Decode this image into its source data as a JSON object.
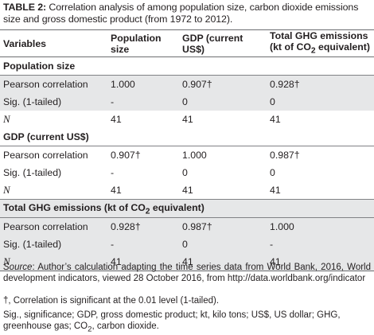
{
  "caption": {
    "label": "TABLE 2:",
    "text": " Correlation analysis of among population size, carbon dioxide emissions size and gross domestic product (from 1972 to 2012)."
  },
  "headers": {
    "variables": "Variables",
    "population": "Population size",
    "gdp": "GDP (current US$)",
    "ghg_pre": "Total GHG emissions (kt of CO",
    "ghg_sub": "2",
    "ghg_post": " equivalent)"
  },
  "sections": [
    {
      "title": "Population size",
      "rows": [
        {
          "label": "Pearson correlation",
          "pop": "1.000",
          "gdp": "0.907†",
          "ghg": "0.928†"
        },
        {
          "label": "Sig. (1-tailed)",
          "pop": "-",
          "gdp": "0",
          "ghg": "0"
        },
        {
          "label": "N",
          "pop": "41",
          "gdp": "41",
          "ghg": "41"
        }
      ]
    },
    {
      "title": "GDP (current US$)",
      "rows": [
        {
          "label": "Pearson correlation",
          "pop": "0.907†",
          "gdp": "1.000",
          "ghg": "0.987†"
        },
        {
          "label": "Sig. (1-tailed)",
          "pop": "-",
          "gdp": "0",
          "ghg": "0"
        },
        {
          "label": "N",
          "pop": "41",
          "gdp": "41",
          "ghg": "41"
        }
      ]
    },
    {
      "title_pre": "Total GHG emissions (kt of CO",
      "title_sub": "2",
      "title_post": " equivalent)",
      "rows": [
        {
          "label": "Pearson correlation",
          "pop": "0.928†",
          "gdp": "0.987†",
          "ghg": "1.000"
        },
        {
          "label": "Sig. (1-tailed)",
          "pop": "-",
          "gdp": "0",
          "ghg": "-"
        },
        {
          "label": "N",
          "pop": "41",
          "gdp": "41",
          "ghg": "41"
        }
      ]
    }
  ],
  "notes": {
    "source_label": "Source",
    "source_text": ": Author’s calculation adapting the time series data from World Bank, 2016, World development indicators, viewed 28 October 2016, from http://data.worldbank.org/indicator",
    "significance": "†, Correlation is significant at the 0.01 level (1-tailed).",
    "abbrev_pre": "Sig., significance; GDP, gross domestic product; kt, kilo tons; US$, US dollar; GHG, greenhouse gas; CO",
    "abbrev_sub": "2",
    "abbrev_post": ", carbon dioxide."
  }
}
